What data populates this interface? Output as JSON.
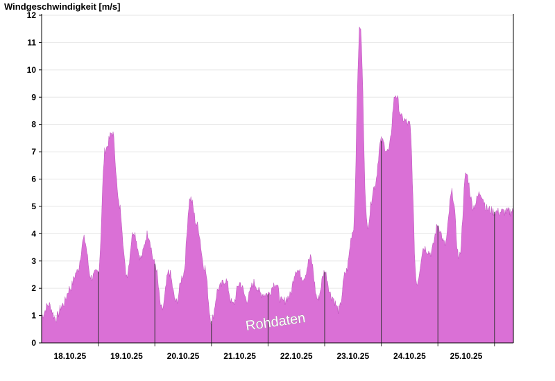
{
  "chart_data": {
    "type": "area",
    "title": "Windgeschwindigkeit [m/s]",
    "ylim": [
      0,
      12
    ],
    "yticks": [
      0,
      1,
      2,
      3,
      4,
      5,
      6,
      7,
      8,
      9,
      10,
      11,
      12
    ],
    "xlim": [
      "2025-10-17T12:00",
      "2025-10-25T20:00"
    ],
    "x_tick_labels": [
      "18.10.25",
      "19.10.25",
      "20.10.25",
      "21.10.25",
      "22.10.25",
      "23.10.25",
      "24.10.25",
      "25.10.25"
    ],
    "x_tick_positions": [
      "2025-10-18T00:00",
      "2025-10-19T00:00",
      "2025-10-20T00:00",
      "2025-10-21T00:00",
      "2025-10-22T00:00",
      "2025-10-23T00:00",
      "2025-10-24T00:00",
      "2025-10-25T00:00"
    ],
    "day_dividers": [
      "2025-10-18T12:00",
      "2025-10-19T12:00",
      "2025-10-20T12:00",
      "2025-10-21T12:00",
      "2025-10-22T12:00",
      "2025-10-23T12:00",
      "2025-10-24T12:00",
      "2025-10-25T12:00"
    ],
    "watermark": "Rohdaten",
    "grid": "horizontal",
    "fill_color": "#da70d6",
    "series": [
      {
        "x": [
          "2025-10-17T12:00",
          "2025-10-17T15:00",
          "2025-10-17T18:00",
          "2025-10-17T21:00",
          "2025-10-18T00:00",
          "2025-10-18T03:00",
          "2025-10-18T06:00",
          "2025-10-18T09:00",
          "2025-10-18T12:00",
          "2025-10-18T15:00",
          "2025-10-18T18:00",
          "2025-10-18T21:00",
          "2025-10-19T00:00",
          "2025-10-19T03:00",
          "2025-10-19T06:00",
          "2025-10-19T09:00",
          "2025-10-19T12:00",
          "2025-10-19T15:00",
          "2025-10-19T18:00",
          "2025-10-19T21:00",
          "2025-10-20T00:00",
          "2025-10-20T03:00",
          "2025-10-20T06:00",
          "2025-10-20T09:00",
          "2025-10-20T12:00",
          "2025-10-20T15:00",
          "2025-10-20T18:00",
          "2025-10-20T21:00",
          "2025-10-21T00:00",
          "2025-10-21T03:00",
          "2025-10-21T06:00",
          "2025-10-21T09:00",
          "2025-10-21T12:00",
          "2025-10-21T15:00",
          "2025-10-21T18:00",
          "2025-10-21T21:00",
          "2025-10-22T00:00",
          "2025-10-22T03:00",
          "2025-10-22T06:00",
          "2025-10-22T09:00",
          "2025-10-22T12:00",
          "2025-10-22T15:00",
          "2025-10-22T18:00",
          "2025-10-22T21:00",
          "2025-10-23T00:00",
          "2025-10-23T03:00",
          "2025-10-23T06:00",
          "2025-10-23T09:00",
          "2025-10-23T12:00",
          "2025-10-23T15:00",
          "2025-10-23T18:00",
          "2025-10-23T21:00",
          "2025-10-24T00:00",
          "2025-10-24T03:00",
          "2025-10-24T06:00",
          "2025-10-24T09:00",
          "2025-10-24T12:00",
          "2025-10-24T15:00",
          "2025-10-24T18:00",
          "2025-10-24T21:00",
          "2025-10-25T00:00",
          "2025-10-25T03:00",
          "2025-10-25T06:00",
          "2025-10-25T09:00",
          "2025-10-25T12:00",
          "2025-10-25T15:00",
          "2025-10-25T18:00",
          "2025-10-25T20:00"
        ],
        "y": [
          1.0,
          1.4,
          0.9,
          1.4,
          2.0,
          2.6,
          3.8,
          2.4,
          2.6,
          7.1,
          7.7,
          5.0,
          2.5,
          4.1,
          3.1,
          4.0,
          2.9,
          1.2,
          2.6,
          1.5,
          2.5,
          5.3,
          4.3,
          2.8,
          0.8,
          2.0,
          2.3,
          1.4,
          2.2,
          1.6,
          2.2,
          1.8,
          1.8,
          2.2,
          1.5,
          1.7,
          2.7,
          2.4,
          3.1,
          1.6,
          2.6,
          1.7,
          1.2,
          2.6,
          4.1,
          11.6,
          4.3,
          5.7,
          7.4,
          7.0,
          9.1,
          8.2,
          8.0,
          2.2,
          3.5,
          3.3,
          4.3,
          3.6,
          5.5,
          3.1,
          6.2,
          5.0,
          5.5,
          4.9,
          4.8,
          4.8,
          4.8,
          4.8
        ]
      }
    ]
  }
}
